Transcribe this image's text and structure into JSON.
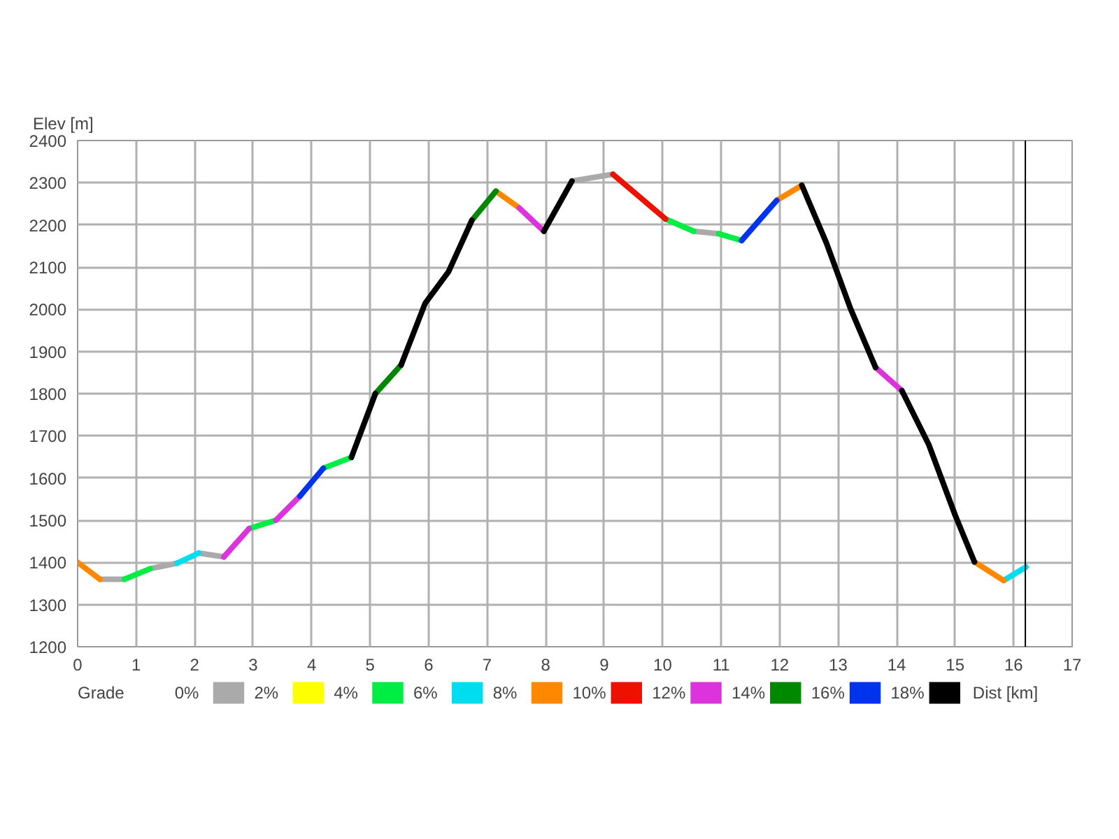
{
  "chart_data": {
    "type": "line",
    "ylabel": "Elev [m]",
    "xlabel": "Dist [km]",
    "legend_title": "Grade",
    "legend": "bottom",
    "grid": true,
    "xlim": [
      0,
      17
    ],
    "xticks": [
      0,
      1,
      2,
      3,
      4,
      5,
      6,
      7,
      8,
      9,
      10,
      11,
      12,
      13,
      14,
      15,
      16,
      17
    ],
    "ylim": [
      1200,
      2400
    ],
    "yticks": [
      1200,
      1300,
      1400,
      1500,
      1600,
      1700,
      1800,
      1900,
      2000,
      2100,
      2200,
      2300,
      2400
    ],
    "ref_lines": [
      {
        "axis": "x",
        "value": 16.2,
        "color": "#000000"
      }
    ],
    "series": [
      {
        "name": "0%",
        "color": "#aaaaaa",
        "x": [
          0.38,
          0.8,
          null,
          1.24,
          1.7,
          null,
          2.07,
          2.5,
          null,
          8.45,
          9.15,
          null,
          10.53,
          10.96
        ],
        "values": [
          1360,
          1360,
          null,
          1385,
          1398,
          null,
          1422,
          1413,
          null,
          2304,
          2320,
          null,
          2185,
          2179
        ]
      },
      {
        "name": "2%",
        "color": "#ffff00"
      },
      {
        "name": "4%",
        "color": "#00ee44",
        "x": [
          0.8,
          1.24,
          null,
          2.93,
          3.39,
          null,
          4.2,
          4.68,
          null,
          10.05,
          10.53,
          null,
          10.96,
          11.35
        ],
        "values": [
          1360,
          1385,
          null,
          1480,
          1500,
          null,
          1623,
          1649,
          null,
          2214,
          2185,
          null,
          2179,
          2163
        ]
      },
      {
        "name": "6%",
        "color": "#00ddee",
        "x": [
          1.7,
          2.07,
          null,
          15.83,
          16.21
        ],
        "values": [
          1398,
          1422,
          null,
          1357,
          1389
        ]
      },
      {
        "name": "8%",
        "color": "#ff8800",
        "x": [
          0,
          0.38,
          null,
          7.15,
          7.55,
          null,
          11.95,
          12.38,
          null,
          15.33,
          15.83
        ],
        "values": [
          1400,
          1360,
          null,
          2280,
          2240,
          null,
          2258,
          2294,
          null,
          1401,
          1357
        ]
      },
      {
        "name": "10%",
        "color": "#ee1100",
        "x": [
          9.15,
          10.05
        ],
        "values": [
          2320,
          2214
        ]
      },
      {
        "name": "12%",
        "color": "#dd33dd",
        "x": [
          2.5,
          2.93,
          null,
          3.39,
          3.8,
          null,
          7.55,
          7.97,
          null,
          13.64,
          14.09
        ],
        "values": [
          1413,
          1480,
          null,
          1500,
          1557,
          null,
          2240,
          2185,
          null,
          1862,
          1807
        ]
      },
      {
        "name": "14%",
        "color": "#008800",
        "x": [
          5.09,
          5.53,
          null,
          6.74,
          7.15
        ],
        "values": [
          1800,
          1868,
          null,
          2211,
          2280
        ]
      },
      {
        "name": "16%",
        "color": "#0033ee",
        "x": [
          3.8,
          4.2,
          null,
          11.35,
          11.95
        ],
        "values": [
          1557,
          1623,
          null,
          2163,
          2258
        ]
      },
      {
        "name": "18%",
        "color": "#000000",
        "x": [
          4.68,
          5.09,
          null,
          5.53,
          5.94,
          6.34,
          6.74,
          null,
          7.97,
          8.45,
          null,
          12.38,
          12.8,
          13.21,
          13.64,
          null,
          14.09,
          14.55,
          15.0,
          15.33
        ],
        "values": [
          1649,
          1800,
          null,
          1868,
          2014,
          2089,
          2211,
          null,
          2185,
          2304,
          null,
          2294,
          2157,
          2002,
          1862,
          null,
          1807,
          1679,
          1512,
          1401
        ]
      }
    ]
  }
}
